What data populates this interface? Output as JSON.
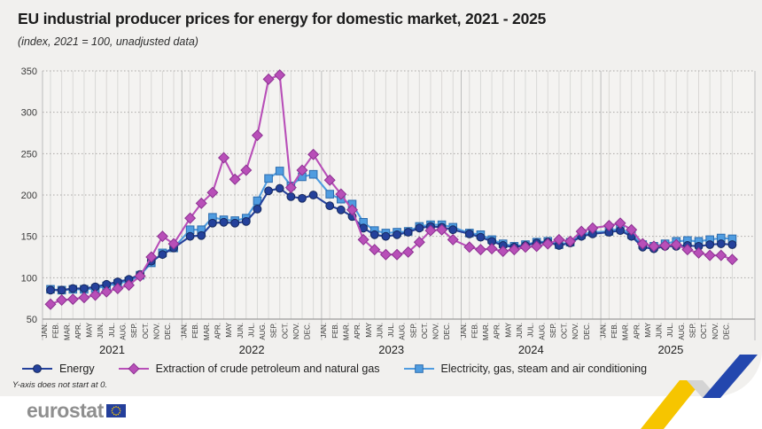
{
  "header": {
    "title": "EU industrial producer prices for energy for domestic market, 2021 - 2025",
    "subtitle": "(index, 2021 = 100, unadjusted data)"
  },
  "chart_data": {
    "type": "line",
    "title": "EU industrial producer prices for energy for domestic market, 2021 - 2025",
    "subtitle": "(index, 2021 = 100, unadjusted data)",
    "y_axis": {
      "min": 50,
      "max": 350,
      "tick_step": 50,
      "grid": "dotted"
    },
    "x_axis": {
      "years": [
        "2021",
        "2022",
        "2023",
        "2024",
        "2025"
      ],
      "month_labels": [
        "JAN.",
        "FEB.",
        "MAR.",
        "APR.",
        "MAY",
        "JUN.",
        "JUL.",
        "AUG.",
        "SEP.",
        "OCT.",
        "NOV.",
        "DEC."
      ]
    },
    "legend_position": "bottom",
    "series": [
      {
        "name": "Energy",
        "marker": "circle",
        "color": "#24419b",
        "edge": "#16295e",
        "values": [
          85,
          85,
          87,
          87,
          89,
          92,
          95,
          98,
          104,
          120,
          128,
          136,
          150,
          151,
          166,
          167,
          166,
          168,
          183,
          205,
          208,
          198,
          196,
          200,
          187,
          182,
          174,
          160,
          152,
          150,
          152,
          155,
          160,
          162,
          161,
          158,
          153,
          149,
          144,
          139,
          137,
          139,
          142,
          143,
          139,
          142,
          150,
          153,
          155,
          157,
          150,
          137,
          135,
          138,
          138,
          139,
          138,
          140,
          141,
          140
        ]
      },
      {
        "name": "Extraction of crude petroleum and natural gas",
        "marker": "diamond",
        "color": "#b84fb8",
        "edge": "#8c3291",
        "values": [
          68,
          73,
          74,
          76,
          79,
          83,
          87,
          91,
          102,
          125,
          150,
          141,
          172,
          190,
          203,
          245,
          219,
          230,
          272,
          340,
          345,
          209,
          230,
          249,
          218,
          201,
          182,
          146,
          134,
          128,
          128,
          131,
          143,
          157,
          158,
          146,
          137,
          134,
          135,
          132,
          134,
          137,
          138,
          141,
          146,
          144,
          156,
          160,
          163,
          166,
          158,
          141,
          138,
          139,
          140,
          134,
          130,
          127,
          127,
          122
        ]
      },
      {
        "name": "Electricity, gas, steam and air conditioning",
        "marker": "square",
        "color": "#4f9ce0",
        "edge": "#2c6cae",
        "values": [
          86,
          85,
          86,
          86,
          87,
          90,
          93,
          96,
          103,
          118,
          130,
          136,
          158,
          158,
          173,
          170,
          169,
          172,
          193,
          220,
          229,
          211,
          222,
          225,
          201,
          195,
          189,
          167,
          157,
          154,
          155,
          156,
          162,
          164,
          164,
          161,
          154,
          152,
          146,
          141,
          138,
          140,
          143,
          144,
          140,
          143,
          152,
          155,
          156,
          160,
          152,
          140,
          138,
          141,
          144,
          145,
          144,
          146,
          148,
          147
        ]
      }
    ]
  },
  "footnote": "Y-axis does not start at 0.",
  "footer": {
    "brand": "eurostat"
  },
  "colors": {
    "panel_bg": "#f1f0ee",
    "energy": "#24419b",
    "crude": "#b84fb8",
    "electricity": "#4f9ce0",
    "decor_yellow": "#f6c500",
    "decor_grey": "#d4d4d4",
    "decor_blue": "#2347ae",
    "eu_flag_blue": "#243f9b",
    "eu_star_yellow": "#ffcc00"
  }
}
